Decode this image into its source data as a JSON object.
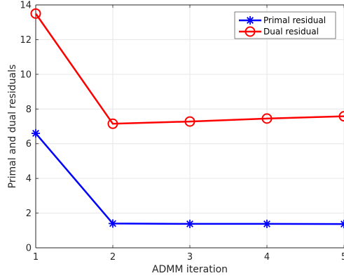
{
  "chart_data": {
    "type": "line",
    "title": "",
    "xlabel": "ADMM iteration",
    "ylabel": "Primal and dual residuals",
    "x": [
      1,
      2,
      3,
      4,
      5
    ],
    "xlim": [
      1,
      5
    ],
    "ylim": [
      0,
      14
    ],
    "xticks": [
      "1",
      "2",
      "3",
      "4",
      "5"
    ],
    "yticks": [
      "0",
      "2",
      "4",
      "6",
      "8",
      "10",
      "12",
      "14"
    ],
    "grid": true,
    "legend_position": "top-right",
    "series": [
      {
        "name": "Primal residual",
        "values": [
          6.6,
          1.4,
          1.38,
          1.38,
          1.37
        ],
        "color": "#0000ff",
        "marker": "asterisk"
      },
      {
        "name": "Dual residual",
        "values": [
          13.5,
          7.15,
          7.28,
          7.45,
          7.58
        ],
        "color": "#ff0000",
        "marker": "circle"
      }
    ]
  }
}
